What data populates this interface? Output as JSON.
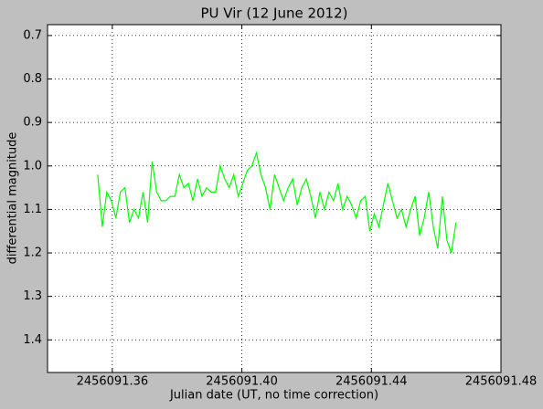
{
  "chart_data": {
    "type": "line",
    "title": "PU Vir (12 June 2012)",
    "xlabel": "Julian date (UT, no time correction)",
    "ylabel": "differential magnitude",
    "xlim": [
      2456091.34,
      2456091.48
    ],
    "xticks": [
      2456091.36,
      {
        "value": 2456091.4,
        "label": "2456091.40"
      },
      2456091.44,
      2456091.48
    ],
    "ylim": [
      0.675,
      1.475
    ],
    "y_inverted": true,
    "yticks": [
      0.7,
      0.8,
      0.9,
      {
        "value": 1.0,
        "label": "1.0"
      },
      1.1,
      1.2,
      1.3,
      1.4
    ],
    "grid": true,
    "series": [
      {
        "color": "#00ff00",
        "x": [
          2456091.3555,
          2456091.3569,
          2456091.3583,
          2456091.3597,
          2456091.3611,
          2456091.3625,
          2456091.3639,
          2456091.3653,
          2456091.3667,
          2456091.3681,
          2456091.3695,
          2456091.3709,
          2456091.3723,
          2456091.3737,
          2456091.3751,
          2456091.3765,
          2456091.3779,
          2456091.3793,
          2456091.3807,
          2456091.3821,
          2456091.3835,
          2456091.3849,
          2456091.3863,
          2456091.3877,
          2456091.3891,
          2456091.3905,
          2456091.3919,
          2456091.3933,
          2456091.3947,
          2456091.3961,
          2456091.3975,
          2456091.3989,
          2456091.4003,
          2456091.4017,
          2456091.4031,
          2456091.4045,
          2456091.4059,
          2456091.4073,
          2456091.4087,
          2456091.4101,
          2456091.4115,
          2456091.4129,
          2456091.4143,
          2456091.4157,
          2456091.4171,
          2456091.4185,
          2456091.4199,
          2456091.4213,
          2456091.4227,
          2456091.4241,
          2456091.4255,
          2456091.4269,
          2456091.4283,
          2456091.4297,
          2456091.4311,
          2456091.4325,
          2456091.4339,
          2456091.4353,
          2456091.4367,
          2456091.4381,
          2456091.4395,
          2456091.4409,
          2456091.4423,
          2456091.4437,
          2456091.4451,
          2456091.4465,
          2456091.4479,
          2456091.4493,
          2456091.4507,
          2456091.4521,
          2456091.4535,
          2456091.4549,
          2456091.4563,
          2456091.4577,
          2456091.4591,
          2456091.4605,
          2456091.4619,
          2456091.4633,
          2456091.4647,
          2456091.4661
        ],
        "values": [
          1.02,
          1.14,
          1.06,
          1.08,
          1.12,
          1.06,
          1.05,
          1.13,
          1.1,
          1.12,
          1.06,
          1.13,
          0.99,
          1.06,
          1.08,
          1.08,
          1.07,
          1.07,
          1.02,
          1.05,
          1.04,
          1.08,
          1.03,
          1.07,
          1.05,
          1.06,
          1.06,
          1.0,
          1.03,
          1.05,
          1.02,
          1.07,
          1.04,
          1.01,
          1.0,
          0.97,
          1.02,
          1.05,
          1.1,
          1.02,
          1.05,
          1.08,
          1.05,
          1.03,
          1.09,
          1.05,
          1.03,
          1.07,
          1.12,
          1.06,
          1.1,
          1.06,
          1.08,
          1.04,
          1.1,
          1.07,
          1.09,
          1.12,
          1.08,
          1.07,
          1.15,
          1.11,
          1.14,
          1.09,
          1.04,
          1.08,
          1.12,
          1.1,
          1.14,
          1.1,
          1.07,
          1.16,
          1.12,
          1.06,
          1.14,
          1.19,
          1.07,
          1.17,
          1.2,
          1.13
        ]
      }
    ]
  }
}
